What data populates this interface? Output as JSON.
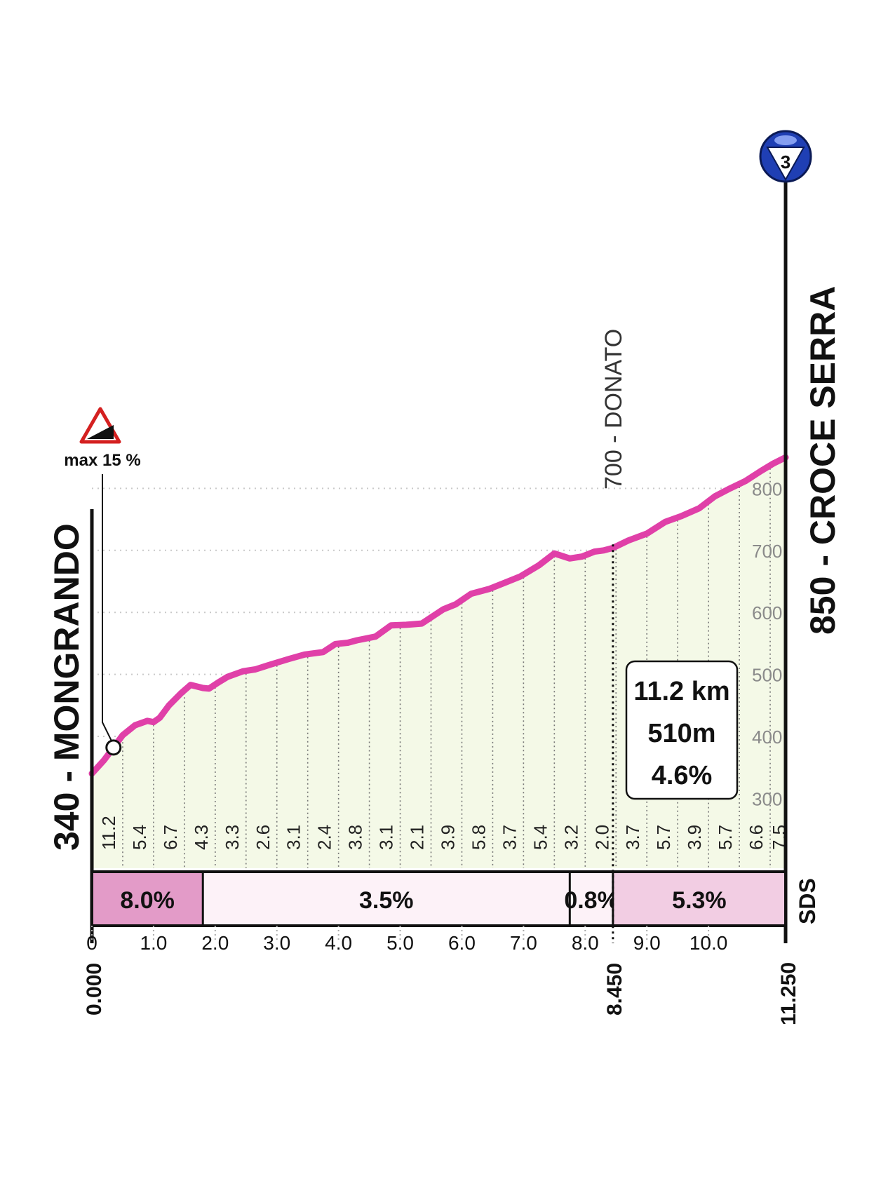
{
  "chart_data": {
    "type": "area",
    "start": {
      "label": "340 - MONGRANDO",
      "km": "0.000"
    },
    "finish": {
      "label": "850 - CROCE SERRA",
      "km": "11.250"
    },
    "intermediate": {
      "label": "700 - DONATO",
      "km": "8.450",
      "x": 8.45
    },
    "kom_category": "3",
    "steep_sign": {
      "label": "max 15 %",
      "x": 0.35,
      "y": 382
    },
    "summary": {
      "distance": "11.2 km",
      "gain": "510m",
      "avg_gradient": "4.6%"
    },
    "sds_label": "SDS",
    "xlim": [
      0,
      11.25
    ],
    "ylim": [
      340,
      850
    ],
    "y_ticks": [
      "300",
      "400",
      "500",
      "600",
      "700",
      "800"
    ],
    "x_ticks": [
      "0",
      "1.0",
      "2.0",
      "3.0",
      "4.0",
      "5.0",
      "6.0",
      "7.0",
      "8.0",
      "9.0",
      "10.0"
    ],
    "segment_gradients": [
      "11.2",
      "5.4",
      "6.7",
      "4.3",
      "3.3",
      "2.6",
      "3.1",
      "2.4",
      "3.8",
      "3.1",
      "2.1",
      "3.9",
      "5.8",
      "3.7",
      "5.4",
      "3.2",
      "2.0",
      "3.7",
      "5.7",
      "3.9",
      "5.7",
      "6.6",
      "7.5"
    ],
    "sections": [
      {
        "from": 0,
        "to": 1.8,
        "gradient": "8.0%",
        "color": "#e39bc8"
      },
      {
        "from": 1.8,
        "to": 7.75,
        "gradient": "3.5%",
        "color": "#fdf2f8"
      },
      {
        "from": 7.75,
        "to": 8.45,
        "gradient": "0.8%",
        "color": "#fdf2f8"
      },
      {
        "from": 8.45,
        "to": 11.25,
        "gradient": "5.3%",
        "color": "#f2cde3"
      }
    ],
    "profile": {
      "x": [
        0,
        0.2,
        0.35,
        0.5,
        0.7,
        0.9,
        1.0,
        1.1,
        1.25,
        1.45,
        1.6,
        1.8,
        1.9,
        2.05,
        2.2,
        2.45,
        2.65,
        2.9,
        3.2,
        3.45,
        3.75,
        3.95,
        4.15,
        4.3,
        4.6,
        4.85,
        5.1,
        5.35,
        5.7,
        5.9,
        6.15,
        6.45,
        6.7,
        6.95,
        7.25,
        7.5,
        7.75,
        7.95,
        8.15,
        8.3,
        8.45,
        8.7,
        9.0,
        9.3,
        9.55,
        9.85,
        10.1,
        10.35,
        10.6,
        10.85,
        11.05,
        11.25
      ],
      "y": [
        340,
        362,
        382,
        402,
        418,
        425,
        423,
        430,
        450,
        470,
        483,
        478,
        477,
        487,
        496,
        505,
        508,
        516,
        525,
        532,
        536,
        549,
        551,
        555,
        561,
        579,
        580,
        582,
        605,
        613,
        630,
        638,
        648,
        658,
        676,
        695,
        687,
        690,
        698,
        700,
        704,
        716,
        727,
        746,
        755,
        768,
        787,
        800,
        812,
        828,
        840,
        850
      ]
    }
  },
  "colors": {
    "line": "#e040a8",
    "fill": "#f4f9e7",
    "kom": "#1f3fb4"
  }
}
